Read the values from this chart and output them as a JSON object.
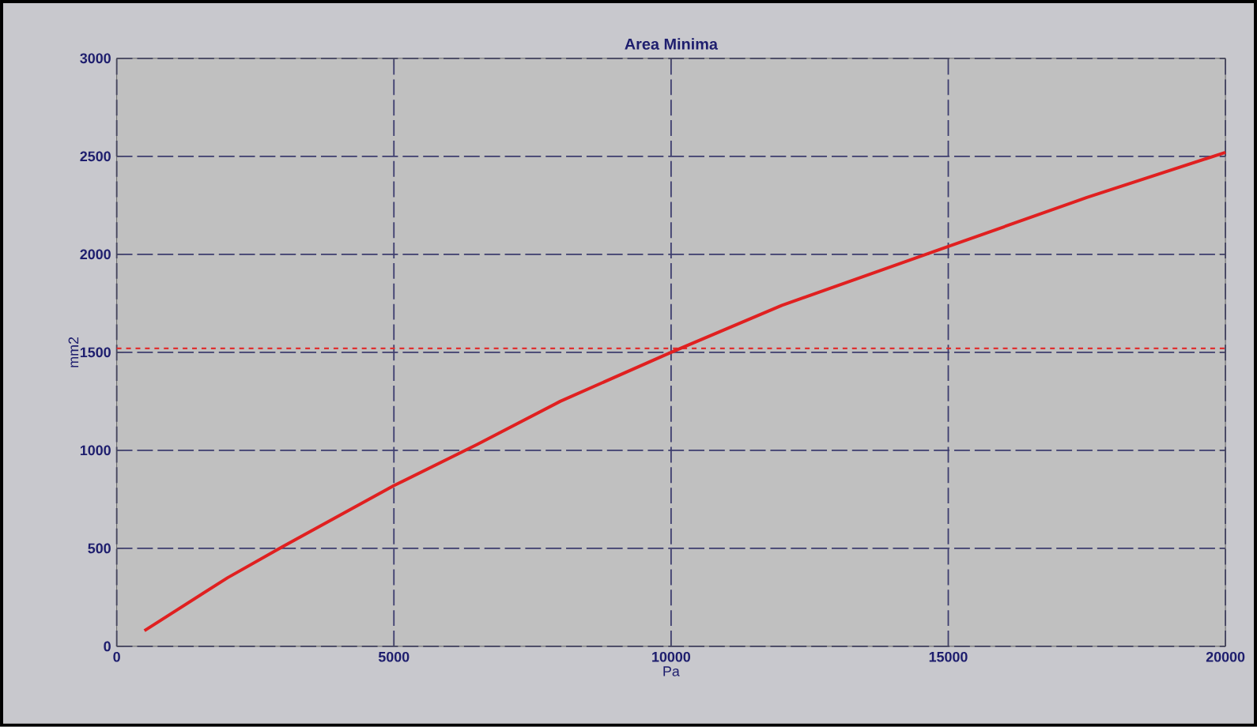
{
  "chart_data": {
    "type": "line",
    "title": "Area Minima",
    "xlabel": "Pa",
    "ylabel": "mm2",
    "xlim": [
      0,
      20000
    ],
    "xticks": [
      0,
      5000,
      10000,
      15000,
      20000
    ],
    "ylim": [
      0,
      3000
    ],
    "yticks": [
      0,
      500,
      1000,
      1500,
      2000,
      2500,
      3000
    ],
    "grid": true,
    "x": [
      500,
      2000,
      3000,
      5000,
      6500,
      8000,
      10000,
      12000,
      15000,
      17500,
      20000
    ],
    "series": [
      {
        "color": "#e02020",
        "values": [
          80,
          350,
          510,
          820,
          1030,
          1250,
          1500,
          1740,
          2040,
          2290,
          2520
        ]
      }
    ],
    "ref_lines": [
      {
        "axis": "y",
        "value": 1520,
        "color": "#e03030",
        "line_style": "dashed"
      }
    ]
  }
}
